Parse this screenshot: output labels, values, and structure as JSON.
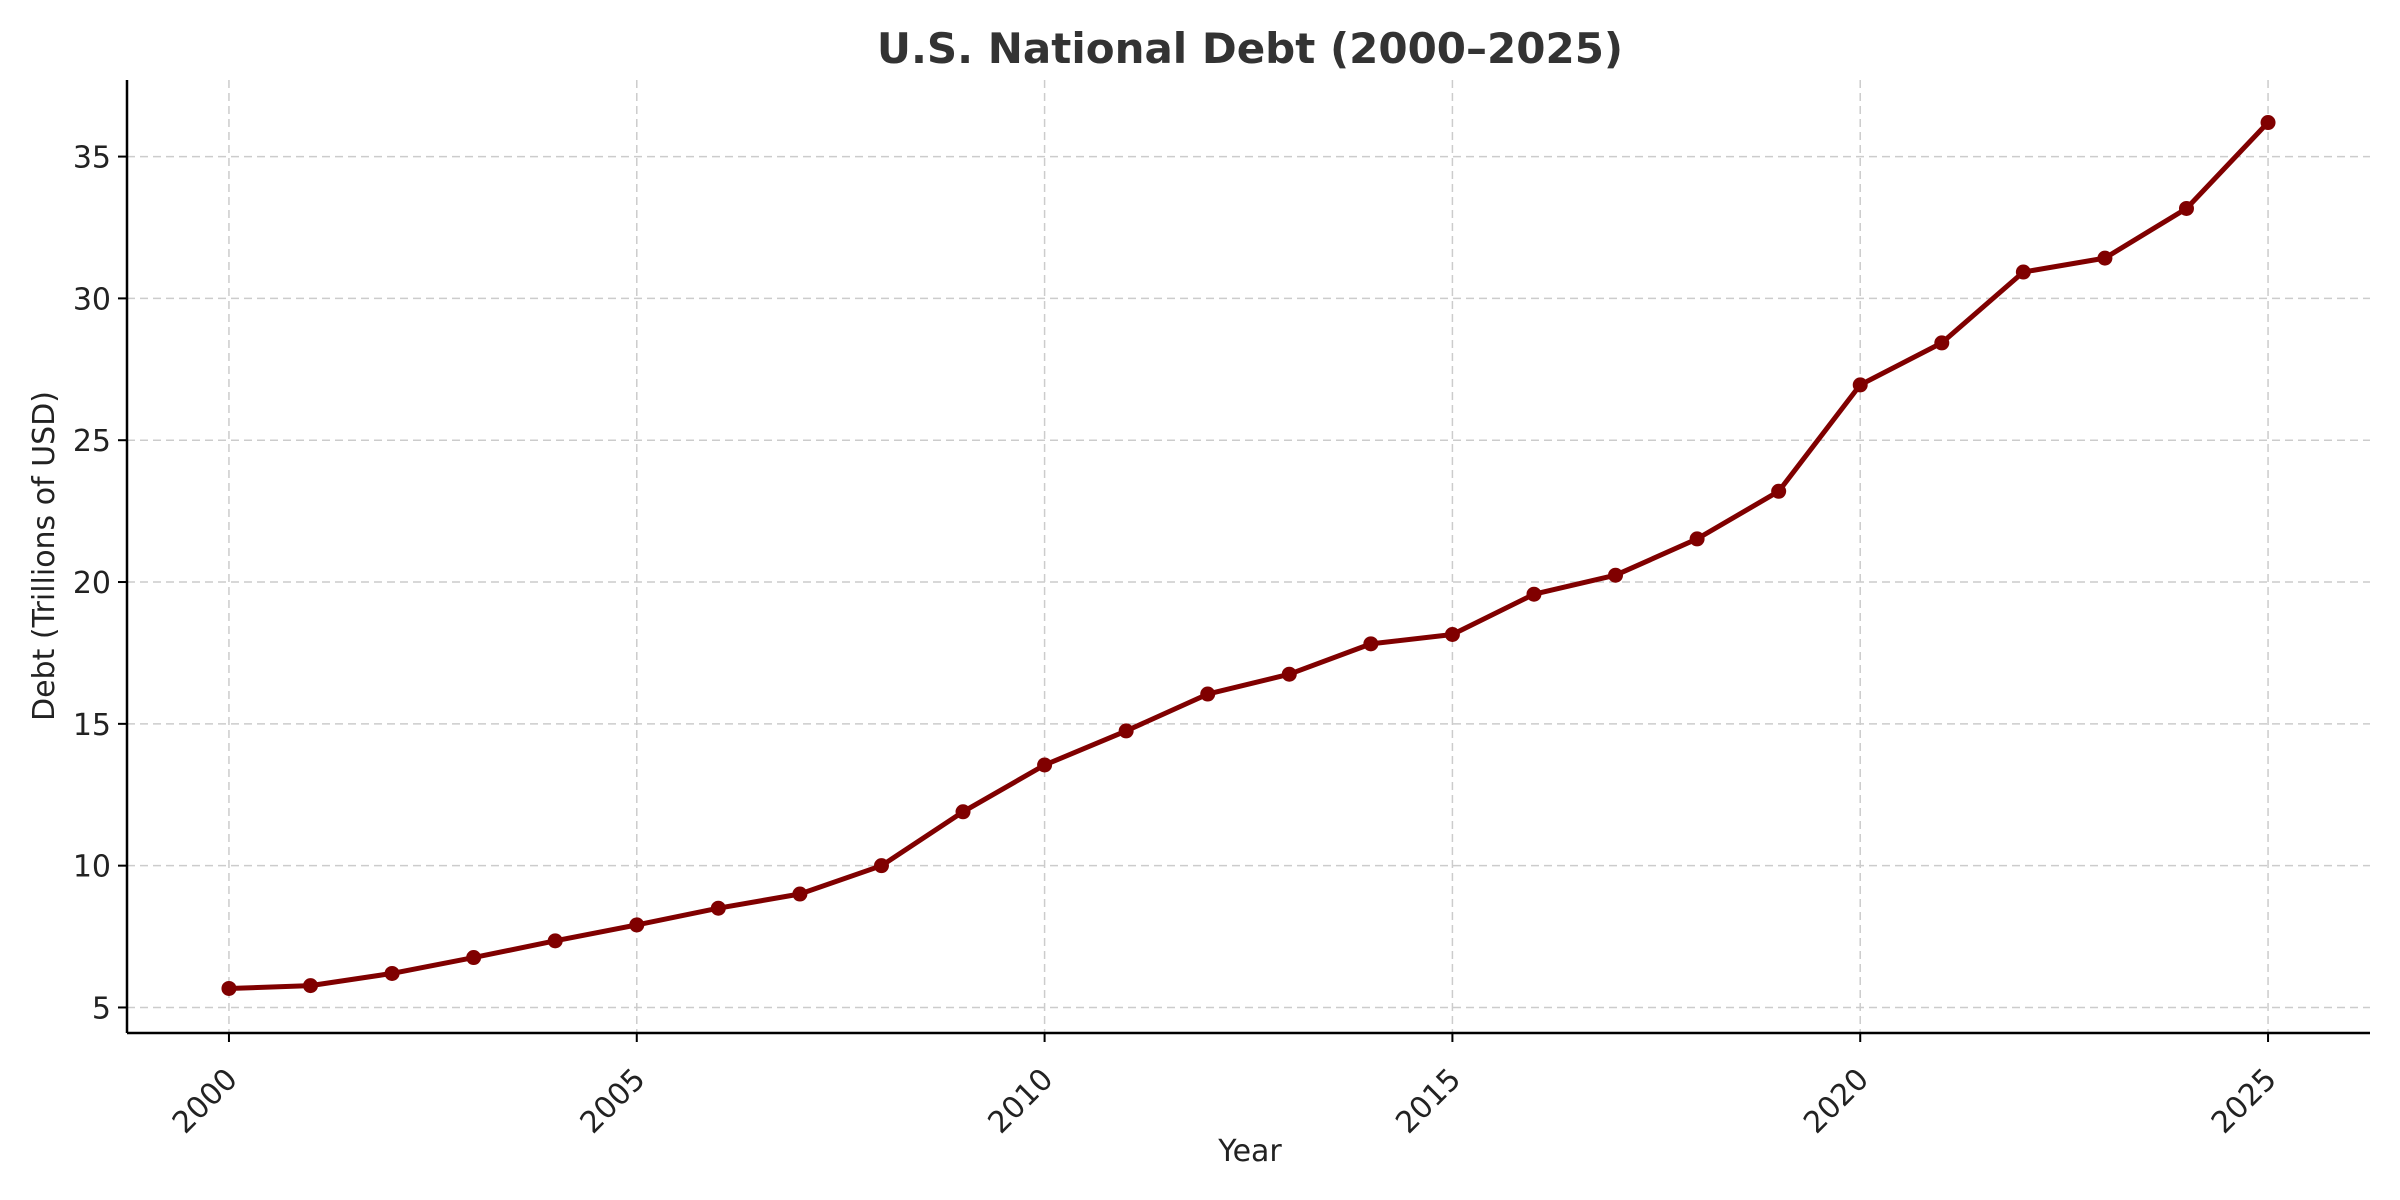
{
  "chart_data": {
    "type": "line",
    "title": "U.S. National Debt (2000–2025)",
    "xlabel": "Year",
    "ylabel": "Debt (Trillions of USD)",
    "xlim": [
      1998.75,
      2026.25
    ],
    "ylim": [
      4.1,
      37.7
    ],
    "x_ticks": [
      2000,
      2005,
      2010,
      2015,
      2020,
      2025
    ],
    "y_ticks": [
      5,
      10,
      15,
      20,
      25,
      30,
      35
    ],
    "grid": true,
    "legend": "none",
    "colors": {
      "line": "#800000",
      "marker": "#800000",
      "grid": "#cccccc",
      "title": "#333333"
    },
    "series": [
      {
        "x": [
          2000,
          2001,
          2002,
          2003,
          2004,
          2005,
          2006,
          2007,
          2008,
          2009,
          2010,
          2011,
          2012,
          2013,
          2014,
          2015,
          2016,
          2017,
          2018,
          2019,
          2020,
          2021,
          2022,
          2023,
          2024,
          2025
        ],
        "values": [
          5.67,
          5.77,
          6.2,
          6.76,
          7.35,
          7.91,
          8.5,
          9.0,
          10.0,
          11.9,
          13.55,
          14.75,
          16.05,
          16.75,
          17.82,
          18.15,
          19.57,
          20.24,
          21.52,
          23.2,
          26.95,
          28.43,
          30.93,
          31.42,
          33.17,
          36.2
        ]
      }
    ]
  }
}
